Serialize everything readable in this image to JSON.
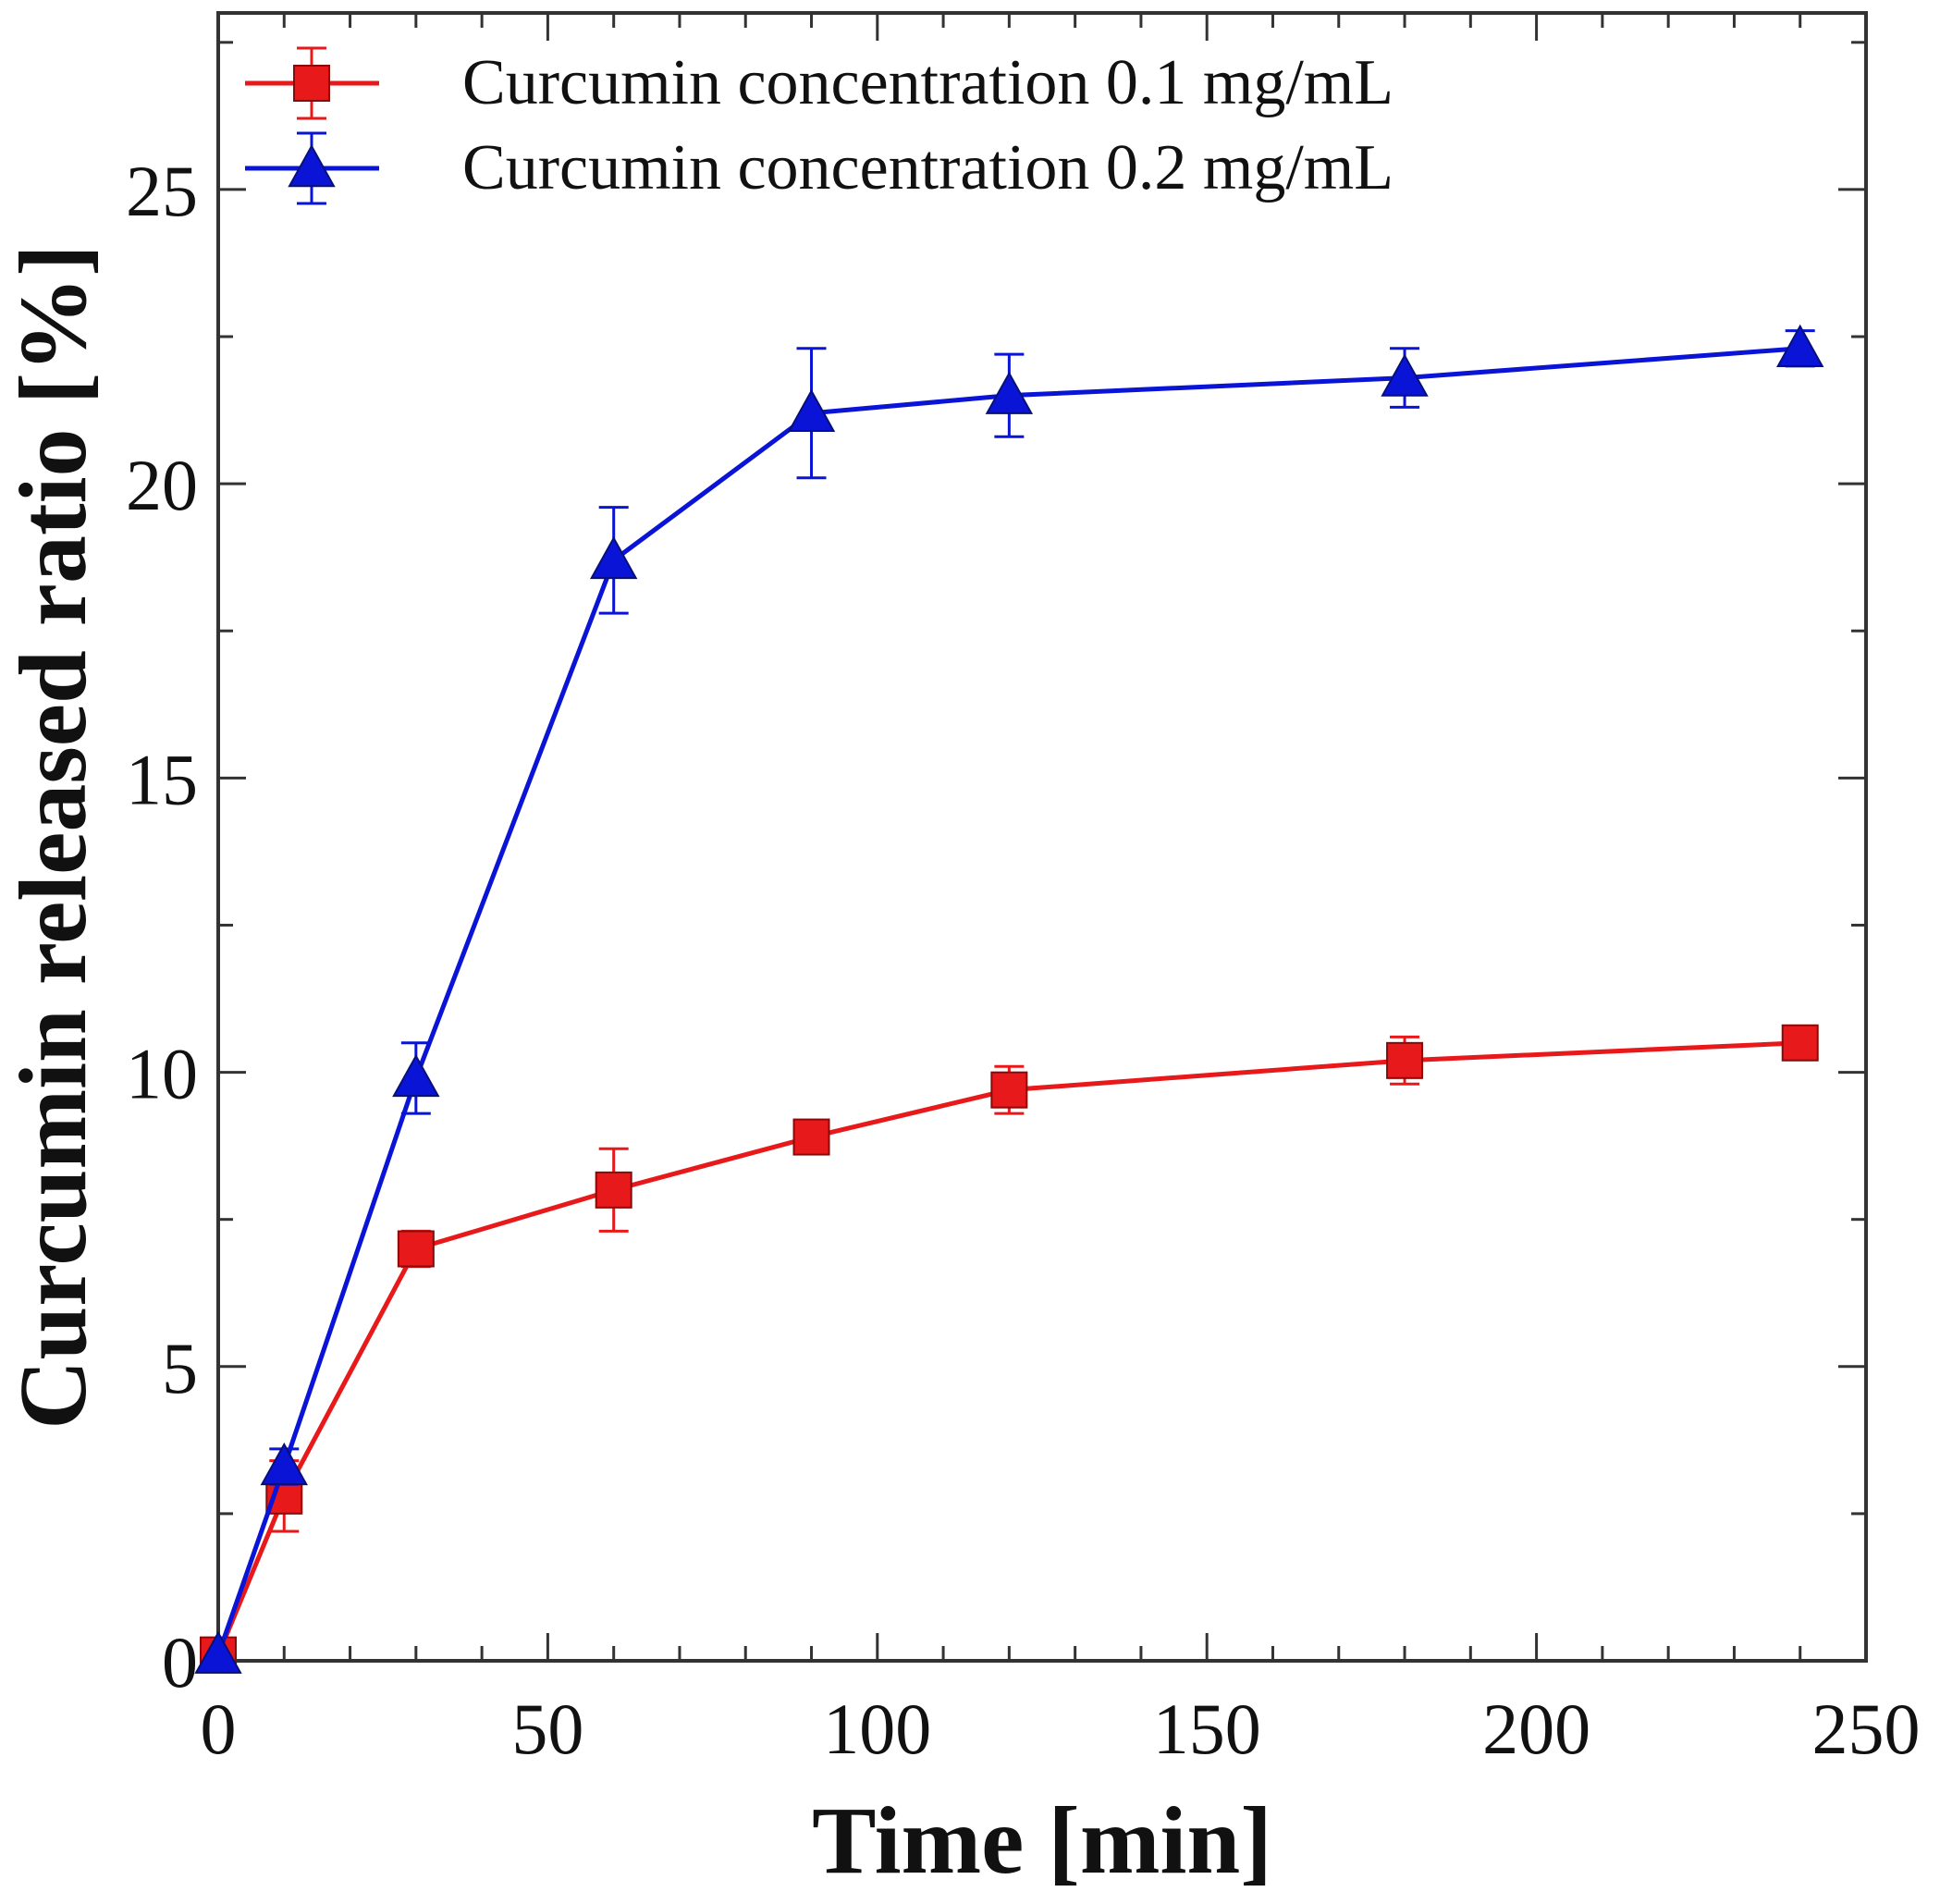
{
  "chart_data": {
    "type": "line",
    "title": "",
    "xlabel": "Time [min]",
    "ylabel": "Curcumin released ratio [%]",
    "xlim": [
      0,
      250
    ],
    "ylim": [
      0,
      28
    ],
    "x_ticks": [
      0,
      50,
      100,
      150,
      200,
      250
    ],
    "y_ticks": [
      0,
      5,
      10,
      15,
      20,
      25
    ],
    "x_tick_labels": [
      "0",
      "50",
      "100",
      "150",
      "200",
      "250"
    ],
    "y_tick_labels": [
      "0",
      "5",
      "10",
      "15",
      "20",
      "25"
    ],
    "x_minor_step": 10,
    "y_minor_step": 2.5,
    "grid": false,
    "legend_position": "top-left",
    "series": [
      {
        "name": "Curcumin concentration 0.1 mg/mL",
        "color": "#e8191a",
        "marker": "square",
        "x": [
          0,
          10,
          30,
          60,
          90,
          120,
          180,
          240
        ],
        "y": [
          0.1,
          2.8,
          7.0,
          8.0,
          8.9,
          9.7,
          10.2,
          10.5
        ],
        "error": [
          0,
          0.6,
          0.3,
          0.7,
          0.2,
          0.4,
          0.4,
          0.2
        ]
      },
      {
        "name": "Curcumin concentration 0.2 mg/mL",
        "color": "#0a14d6",
        "marker": "triangle",
        "x": [
          0,
          10,
          30,
          60,
          90,
          120,
          180,
          240
        ],
        "y": [
          0.1,
          3.3,
          9.9,
          18.7,
          21.2,
          21.5,
          21.8,
          22.3
        ],
        "error": [
          0,
          0.3,
          0.6,
          0.9,
          1.1,
          0.7,
          0.5,
          0.3
        ]
      }
    ]
  }
}
